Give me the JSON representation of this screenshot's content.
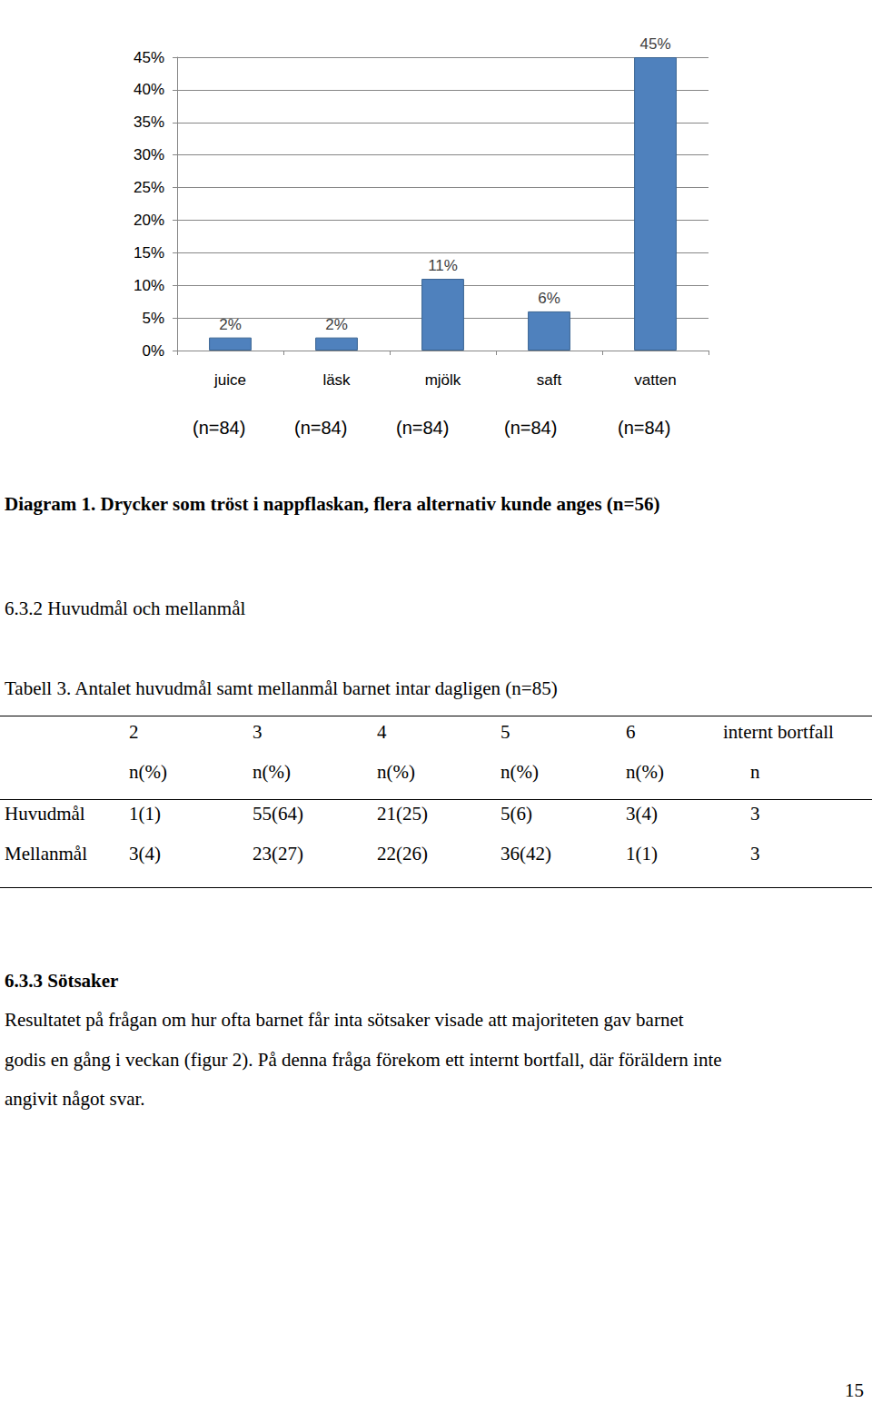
{
  "chart_data": {
    "type": "bar",
    "categories": [
      "juice",
      "läsk",
      "mjölk",
      "saft",
      "vatten"
    ],
    "values": [
      2,
      2,
      11,
      6,
      45
    ],
    "value_labels": [
      "2%",
      "2%",
      "11%",
      "6%",
      "45%"
    ],
    "data_labels": true,
    "color": "#4f81bd",
    "ylim": [
      0,
      45
    ],
    "yticks": [
      {
        "value": 0,
        "label": "0%"
      },
      {
        "value": 5,
        "label": "5%"
      },
      {
        "value": 10,
        "label": "10%"
      },
      {
        "value": 15,
        "label": "15%"
      },
      {
        "value": 20,
        "label": "20%"
      },
      {
        "value": 25,
        "label": "25%"
      },
      {
        "value": 30,
        "label": "30%"
      },
      {
        "value": 35,
        "label": "35%"
      },
      {
        "value": 40,
        "label": "40%"
      },
      {
        "value": 45,
        "label": "45%"
      }
    ],
    "grid": true,
    "annotations": [
      "(n=84)",
      "(n=84)",
      "(n=84)",
      "(n=84)",
      "(n=84)"
    ]
  },
  "document": {
    "caption": "Diagram 1. Drycker som tröst i nappflaskan, flera alternativ kunde anges (n=56)",
    "section_1": "6.3.2 Huvudmål och mellanmål",
    "table": {
      "title": "Tabell 3. Antalet huvudmål samt mellanmål barnet intar dagligen (n=85)",
      "columns": [
        "2",
        "3",
        "4",
        "5",
        "6",
        "internt bortfall"
      ],
      "units": [
        "n(%)",
        "n(%)",
        "n(%)",
        "n(%)",
        "n(%)",
        "n"
      ],
      "rows": [
        {
          "label": "Huvudmål",
          "cells": [
            "1(1)",
            "55(64)",
            "21(25)",
            "5(6)",
            "3(4)",
            "3"
          ]
        },
        {
          "label": "Mellanmål",
          "cells": [
            "3(4)",
            "23(27)",
            "22(26)",
            "36(42)",
            "1(1)",
            "3"
          ]
        }
      ]
    },
    "section_2": {
      "heading": "6.3.3 Sötsaker",
      "lines": [
        "Resultatet på frågan om hur ofta barnet får inta sötsaker visade att majoriteten gav barnet",
        "godis en gång i veckan (figur 2). På denna fråga förekom ett internt bortfall, där föräldern inte",
        "angivit något svar."
      ]
    },
    "page_number": "15"
  }
}
